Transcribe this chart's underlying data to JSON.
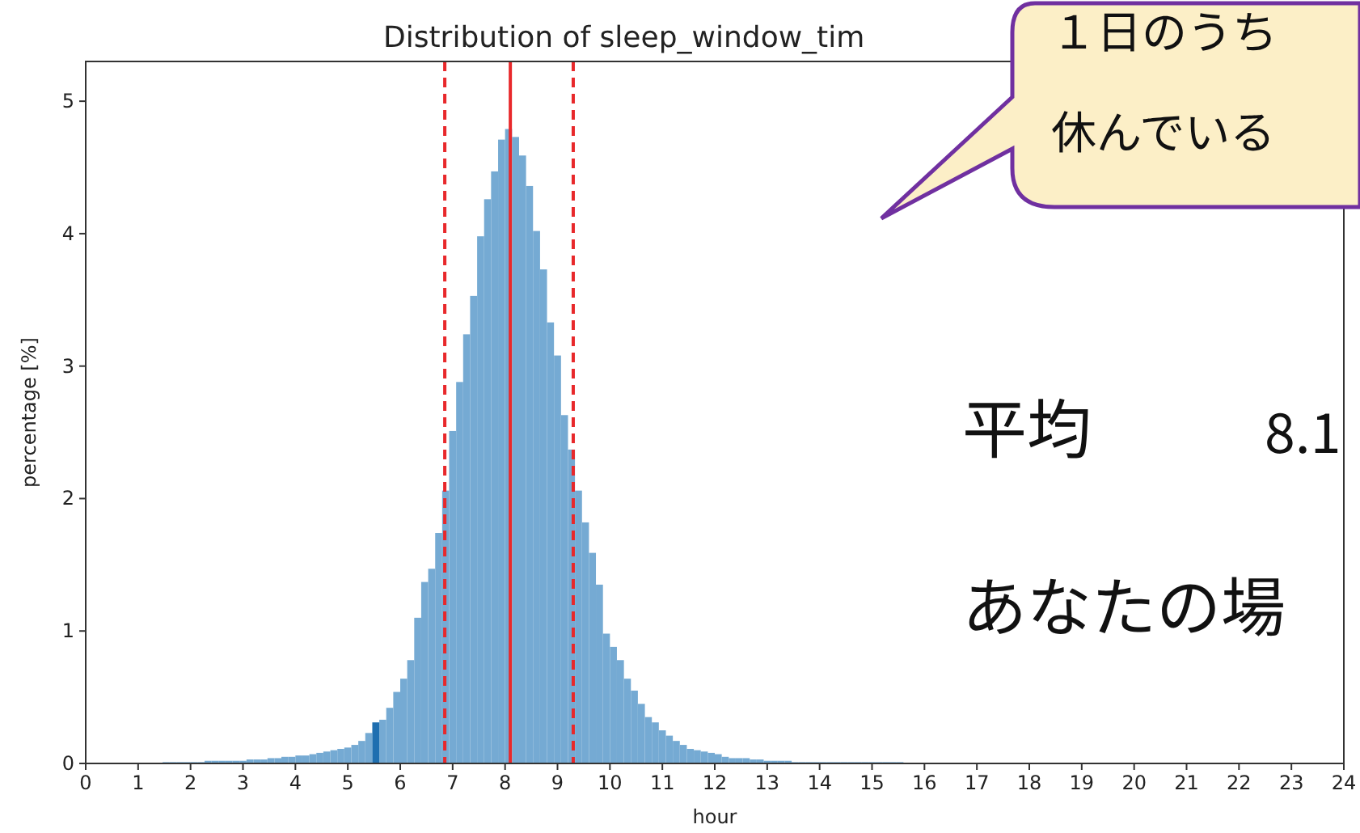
{
  "chart_data": {
    "type": "histogram",
    "title": "Distribution of sleep_window_tim",
    "xlabel": "hour",
    "ylabel": "percentage [%]",
    "bins": [
      1.467,
      1.6,
      1.733,
      1.867,
      2,
      2.133,
      2.267,
      2.4,
      2.533,
      2.667,
      2.8,
      2.933,
      3.067,
      3.2,
      3.333,
      3.467,
      3.6,
      3.733,
      3.867,
      4,
      4.133,
      4.267,
      4.4,
      4.533,
      4.667,
      4.8,
      4.933,
      5.067,
      5.2,
      5.333,
      5.467,
      5.6,
      5.733,
      5.867,
      6,
      6.133,
      6.267,
      6.4,
      6.533,
      6.667,
      6.8,
      6.933,
      7.067,
      7.2,
      7.333,
      7.467,
      7.6,
      7.733,
      7.867,
      8,
      8.133,
      8.267,
      8.4,
      8.533,
      8.667,
      8.8,
      8.933,
      9.067,
      9.2,
      9.333,
      9.467,
      9.6,
      9.733,
      9.867,
      10,
      10.133,
      10.267,
      10.4,
      10.533,
      10.667,
      10.8,
      10.933,
      11.067,
      11.2,
      11.333,
      11.467,
      11.6,
      11.733,
      11.867,
      12,
      12.133,
      12.267,
      12.4,
      12.533,
      12.667,
      12.8,
      12.933,
      13.067,
      13.2,
      13.333,
      13.467,
      13.6,
      13.733,
      13.867,
      14,
      14.133,
      14.267,
      14.4,
      14.533,
      14.667,
      14.8,
      14.933,
      15.067,
      15.2,
      15.333,
      15.467,
      15.6
    ],
    "values": [
      0.01,
      0.01,
      0.01,
      0.01,
      0.01,
      0.01,
      0.02,
      0.02,
      0.02,
      0.02,
      0.02,
      0.02,
      0.03,
      0.03,
      0.03,
      0.04,
      0.04,
      0.05,
      0.05,
      0.06,
      0.06,
      0.07,
      0.08,
      0.09,
      0.1,
      0.11,
      0.12,
      0.14,
      0.17,
      0.23,
      0.31,
      0.33,
      0.42,
      0.54,
      0.64,
      0.78,
      1.1,
      1.37,
      1.47,
      1.74,
      2.06,
      2.51,
      2.88,
      3.24,
      3.53,
      3.98,
      4.26,
      4.47,
      4.71,
      4.79,
      4.73,
      4.59,
      4.36,
      4.02,
      3.73,
      3.33,
      3.08,
      2.63,
      2.37,
      2.06,
      1.82,
      1.59,
      1.35,
      0.98,
      0.88,
      0.78,
      0.64,
      0.55,
      0.45,
      0.35,
      0.31,
      0.25,
      0.21,
      0.17,
      0.14,
      0.11,
      0.1,
      0.09,
      0.08,
      0.07,
      0.05,
      0.04,
      0.04,
      0.04,
      0.03,
      0.03,
      0.02,
      0.02,
      0.02,
      0.02,
      0.01,
      0.01,
      0.01,
      0.01,
      0.01,
      0.01,
      0.01,
      0.01,
      0.01,
      0.01,
      0.01,
      0.01,
      0.01,
      0.01,
      0.01,
      0.01
    ],
    "colors": [
      "#75aad3",
      "#75aad3",
      "#75aad3",
      "#75aad3",
      "#75aad3",
      "#75aad3",
      "#75aad3",
      "#75aad3",
      "#75aad3",
      "#75aad3",
      "#75aad3",
      "#75aad3",
      "#75aad3",
      "#75aad3",
      "#75aad3",
      "#75aad3",
      "#75aad3",
      "#75aad3",
      "#75aad3",
      "#75aad3",
      "#75aad3",
      "#75aad3",
      "#75aad3",
      "#75aad3",
      "#75aad3",
      "#75aad3",
      "#75aad3",
      "#75aad3",
      "#75aad3",
      "#75aad3",
      "#1f6fb0",
      "#75aad3",
      "#75aad3",
      "#75aad3",
      "#75aad3",
      "#75aad3",
      "#75aad3",
      "#75aad3",
      "#75aad3",
      "#75aad3",
      "#75aad3",
      "#75aad3",
      "#75aad3",
      "#75aad3",
      "#75aad3",
      "#75aad3",
      "#75aad3",
      "#75aad3",
      "#75aad3",
      "#75aad3",
      "#75aad3",
      "#75aad3",
      "#75aad3",
      "#75aad3",
      "#75aad3",
      "#75aad3",
      "#75aad3",
      "#75aad3",
      "#75aad3",
      "#75aad3",
      "#75aad3",
      "#75aad3",
      "#75aad3",
      "#75aad3",
      "#75aad3",
      "#75aad3",
      "#75aad3",
      "#75aad3",
      "#75aad3",
      "#75aad3",
      "#75aad3",
      "#75aad3",
      "#75aad3",
      "#75aad3",
      "#75aad3",
      "#75aad3",
      "#75aad3",
      "#75aad3",
      "#75aad3",
      "#75aad3",
      "#75aad3",
      "#75aad3",
      "#75aad3",
      "#75aad3",
      "#75aad3",
      "#75aad3",
      "#75aad3",
      "#75aad3",
      "#75aad3",
      "#75aad3",
      "#75aad3",
      "#75aad3",
      "#75aad3",
      "#75aad3",
      "#75aad3",
      "#75aad3",
      "#75aad3",
      "#75aad3",
      "#75aad3",
      "#75aad3",
      "#75aad3",
      "#75aad3",
      "#75aad3",
      "#75aad3",
      "#75aad3",
      "#75aad3"
    ],
    "xlim": [
      0,
      24
    ],
    "ylim": [
      0,
      5.3
    ],
    "xticks": [
      0,
      1,
      2,
      3,
      4,
      5,
      6,
      7,
      8,
      9,
      10,
      11,
      12,
      13,
      14,
      15,
      16,
      17,
      18,
      19,
      20,
      21,
      22,
      23,
      24
    ],
    "yticks": [
      0,
      1,
      2,
      3,
      4,
      5
    ],
    "ref_lines": [
      {
        "axis": "x",
        "value": 6.85,
        "color": "#e8282b",
        "line_style": "dashed"
      },
      {
        "axis": "x",
        "value": 8.1,
        "color": "#e8282b",
        "line_style": "solid"
      },
      {
        "axis": "x",
        "value": 9.3,
        "color": "#e8282b",
        "line_style": "dashed"
      }
    ],
    "annotations": [
      "１日のうち",
      "休んでいる",
      "平均",
      "8.1",
      "あなたの場"
    ]
  }
}
